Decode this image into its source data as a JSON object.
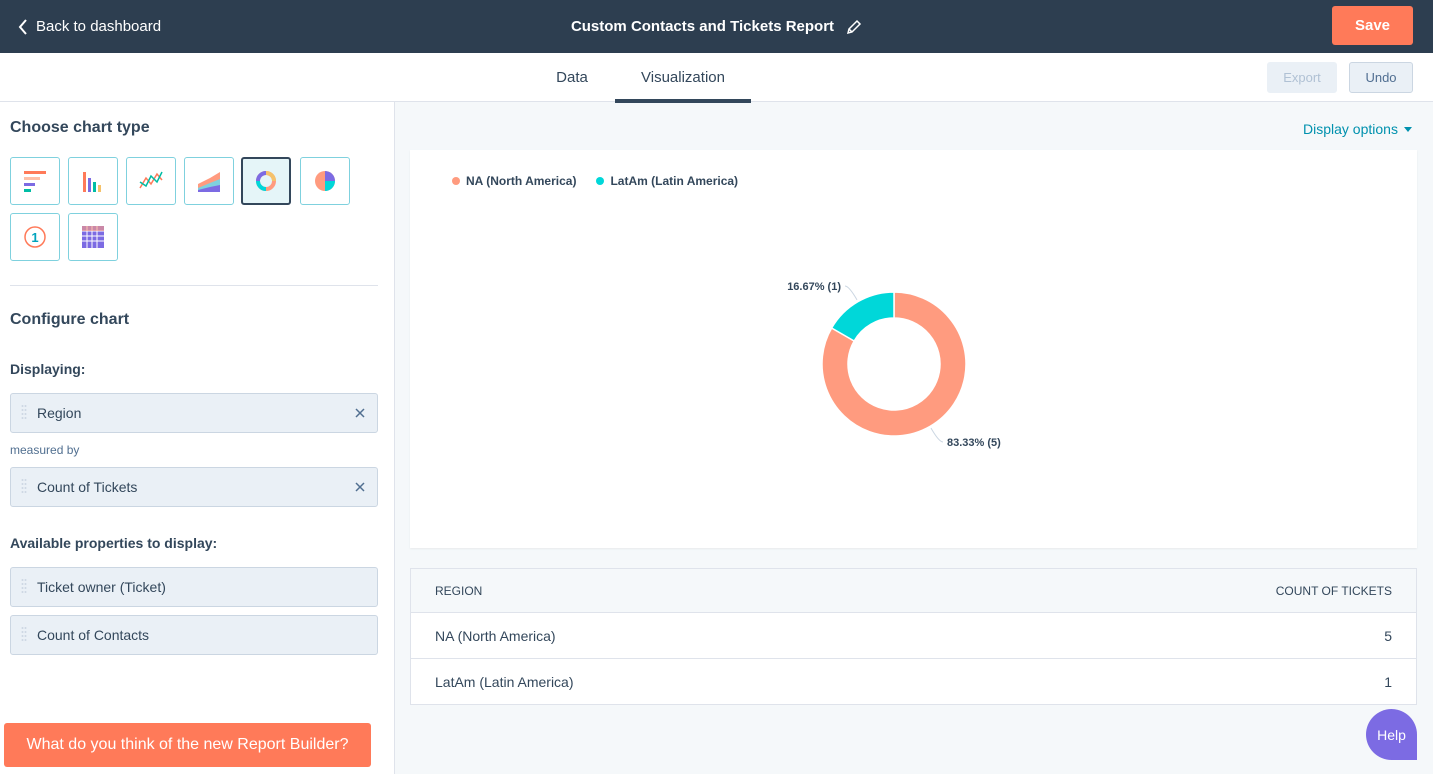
{
  "header": {
    "back_label": "Back to dashboard",
    "title": "Custom Contacts and Tickets Report",
    "save_label": "Save"
  },
  "tabs": [
    {
      "label": "Data",
      "active": false
    },
    {
      "label": "Visualization",
      "active": true
    }
  ],
  "toolbar": {
    "export_label": "Export",
    "undo_label": "Undo"
  },
  "sidebar": {
    "choose_title": "Choose chart type",
    "chart_types": [
      {
        "icon": "horizontal-bar-chart-icon",
        "selected": false
      },
      {
        "icon": "vertical-bar-chart-icon",
        "selected": false
      },
      {
        "icon": "line-chart-icon",
        "selected": false
      },
      {
        "icon": "area-chart-icon",
        "selected": false
      },
      {
        "icon": "donut-chart-icon",
        "selected": true
      },
      {
        "icon": "pie-chart-icon",
        "selected": false
      },
      {
        "icon": "kpi-icon",
        "selected": false
      },
      {
        "icon": "table-icon",
        "selected": false
      }
    ],
    "kpi_glyph": "1",
    "configure_title": "Configure chart",
    "displaying_label": "Displaying:",
    "displaying_value": "Region",
    "measured_by_label": "measured by",
    "measured_value": "Count of Tickets",
    "available_label": "Available properties to display:",
    "available": [
      "Ticket owner (Ticket)",
      "Count of Contacts"
    ],
    "feedback_label": "What do you think of the new Report Builder?"
  },
  "display_options_label": "Display options",
  "chart_data": {
    "type": "pie",
    "subtype": "donut",
    "legend_position": "top-left",
    "categories": [
      "NA (North America)",
      "LatAm (Latin America)"
    ],
    "values": [
      5,
      1
    ],
    "colors": [
      "#ff9b7f",
      "#00d7d9"
    ],
    "data_labels": [
      "83.33% (5)",
      "16.67% (1)"
    ]
  },
  "table": {
    "headers": [
      "REGION",
      "COUNT OF TICKETS"
    ],
    "rows": [
      {
        "region": "NA (North America)",
        "count": "5"
      },
      {
        "region": "LatAm (Latin America)",
        "count": "1"
      }
    ]
  },
  "help_label": "Help"
}
